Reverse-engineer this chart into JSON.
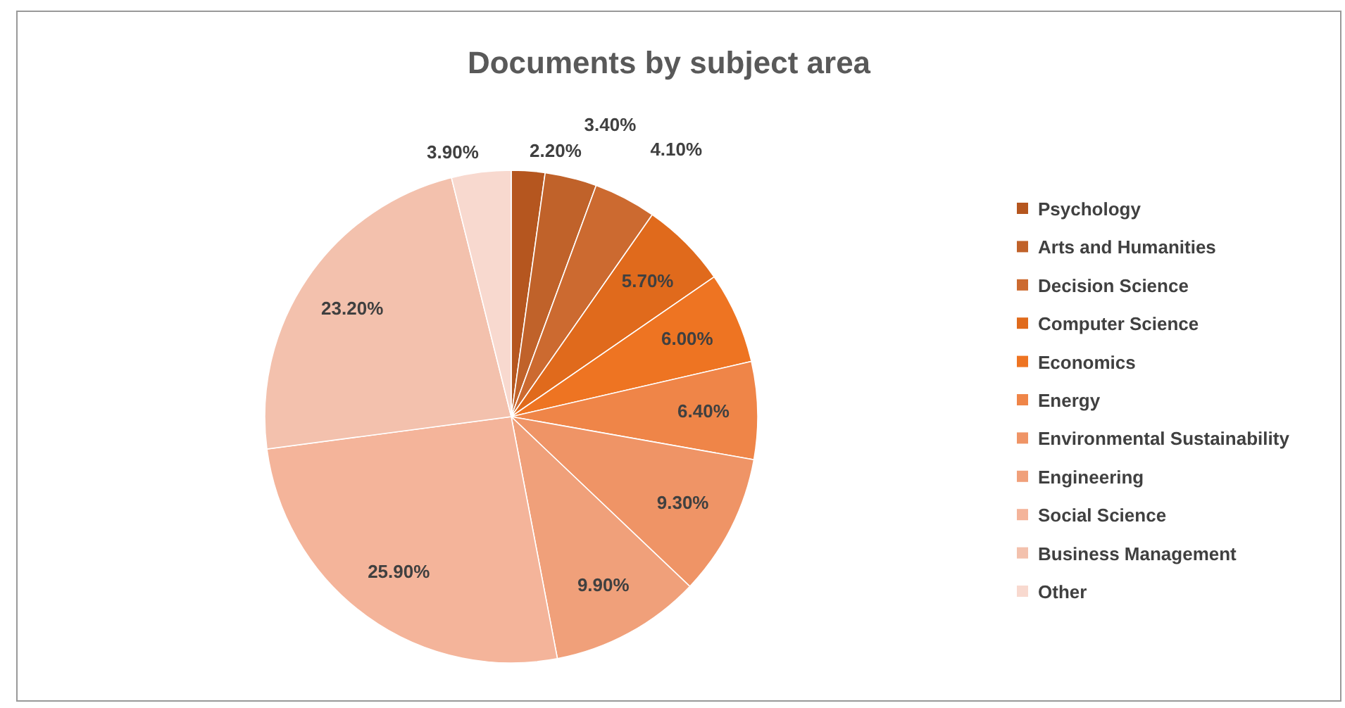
{
  "chart_data": {
    "type": "pie",
    "title": "Documents by subject area",
    "categories": [
      "Psychology",
      "Arts and Humanities",
      "Decision Science",
      "Computer Science",
      "Economics",
      "Energy",
      "Environmental Sustainability",
      "Engineering",
      "Social Science",
      "Business Management",
      "Other"
    ],
    "values": [
      2.2,
      3.4,
      4.1,
      5.7,
      6.0,
      6.4,
      9.3,
      9.9,
      25.9,
      23.2,
      3.9
    ],
    "value_labels": [
      "2.20%",
      "3.40%",
      "4.10%",
      "5.70%",
      "6.00%",
      "6.40%",
      "9.30%",
      "9.90%",
      "25.90%",
      "23.20%",
      "3.90%"
    ],
    "colors": [
      "#b5561f",
      "#c0622a",
      "#cc6a30",
      "#e06a1c",
      "#ee7422",
      "#ef8548",
      "#ef9466",
      "#f0a07a",
      "#f4b49a",
      "#f3c1ad",
      "#f8d9cf"
    ],
    "legend": "right"
  }
}
